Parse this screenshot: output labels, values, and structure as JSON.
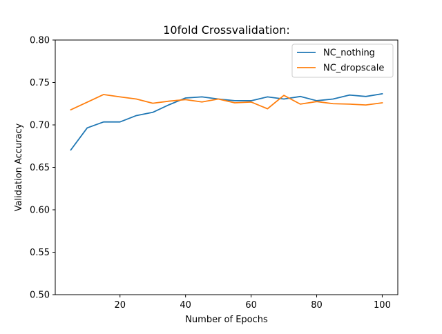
{
  "chart_data": {
    "type": "line",
    "title": "10fold Crossvalidation:",
    "xlabel": "Number of Epochs",
    "ylabel": "Validation Accuracy",
    "xlim": [
      0.25,
      104.75
    ],
    "ylim": [
      0.5,
      0.8
    ],
    "xticks": [
      20,
      40,
      60,
      80,
      100
    ],
    "xtick_labels": [
      "20",
      "40",
      "60",
      "80",
      "100"
    ],
    "yticks": [
      0.5,
      0.55,
      0.6,
      0.65,
      0.7,
      0.75,
      0.8
    ],
    "ytick_labels": [
      "0.50",
      "0.55",
      "0.60",
      "0.65",
      "0.70",
      "0.75",
      "0.80"
    ],
    "grid": false,
    "legend_position": "upper right",
    "x": [
      5,
      10,
      15,
      20,
      25,
      30,
      35,
      40,
      45,
      50,
      55,
      60,
      65,
      70,
      75,
      80,
      85,
      90,
      95,
      100
    ],
    "series": [
      {
        "name": "NC_nothing",
        "color": "#1f77b4",
        "values": [
          0.6705,
          0.6965,
          0.7035,
          0.7035,
          0.711,
          0.7148,
          0.7238,
          0.7317,
          0.733,
          0.7305,
          0.7285,
          0.7285,
          0.733,
          0.7305,
          0.7335,
          0.7285,
          0.7305,
          0.7352,
          0.7335,
          0.7367
        ]
      },
      {
        "name": "NC_dropscale",
        "color": "#ff7f0e",
        "values": [
          0.7178,
          0.7268,
          0.7358,
          0.733,
          0.7305,
          0.7255,
          0.728,
          0.7298,
          0.727,
          0.7305,
          0.726,
          0.727,
          0.719,
          0.7348,
          0.7245,
          0.7275,
          0.725,
          0.7245,
          0.7235,
          0.726
        ]
      }
    ]
  }
}
